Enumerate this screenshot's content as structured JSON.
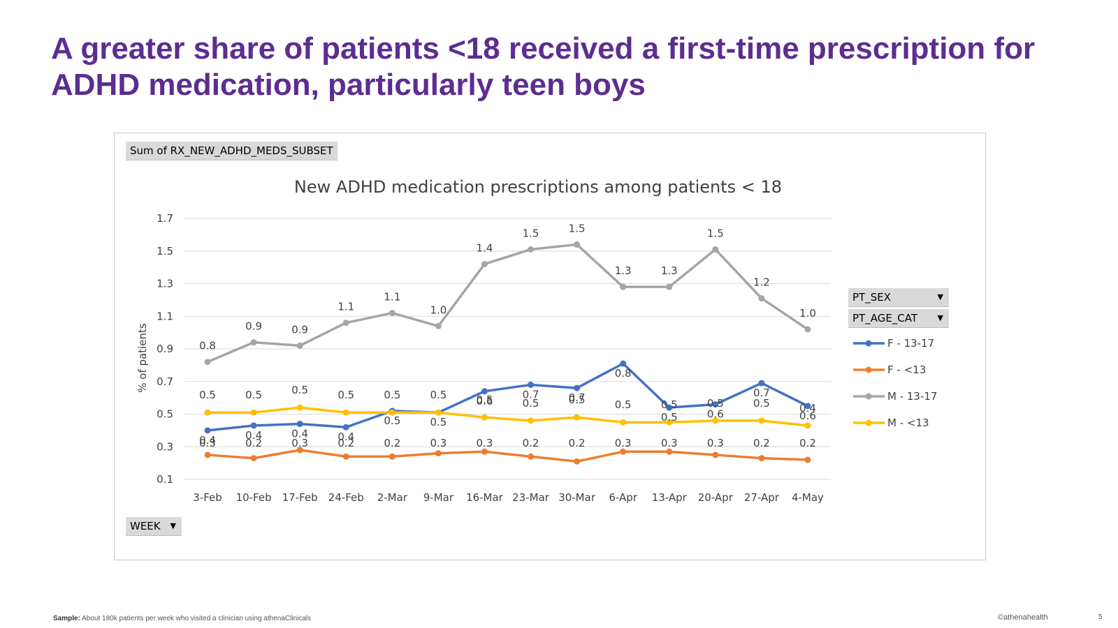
{
  "slide": {
    "title": "A greater share of patients <18 received a first-time prescription for ADHD medication, particularly teen boys",
    "footer_sample_label": "Sample:",
    "footer_sample_text": "About 180k patients per week who visited a clinician using athenaClinicals",
    "footer_brand": "©athenahealth",
    "page_number": "5"
  },
  "pivot": {
    "values_field": "Sum of RX_NEW_ADHD_MEDS_SUBSET",
    "axis_field": "WEEK",
    "legend_field_1": "PT_SEX",
    "legend_field_2": "PT_AGE_CAT",
    "dropdown_icon": "triangle-down-icon"
  },
  "chart_data": {
    "type": "line",
    "title": "New ADHD medication prescriptions among patients < 18",
    "ylabel": "% of patients",
    "xlabel": "",
    "ylim": [
      0.1,
      1.7
    ],
    "yticks": [
      "0.1",
      "0.3",
      "0.5",
      "0.7",
      "0.9",
      "1.1",
      "1.3",
      "1.5",
      "1.7"
    ],
    "grid": true,
    "legend_position": "right",
    "categories": [
      "3-Feb",
      "10-Feb",
      "17-Feb",
      "24-Feb",
      "2-Mar",
      "9-Mar",
      "16-Mar",
      "23-Mar",
      "30-Mar",
      "6-Apr",
      "13-Apr",
      "20-Apr",
      "27-Apr",
      "4-May"
    ],
    "series": [
      {
        "name": "F - 13-17",
        "color": "#4472c4",
        "values": [
          0.4,
          0.43,
          0.44,
          0.42,
          0.52,
          0.51,
          0.64,
          0.68,
          0.66,
          0.81,
          0.54,
          0.56,
          0.69,
          0.55
        ],
        "labels": [
          "0.4",
          "0.4",
          "0.4",
          "0.4",
          "0.5",
          "0.5",
          "0.6",
          "0.7",
          "0.7",
          "0.8",
          "0.5",
          "0.6",
          "0.7",
          "0.6"
        ]
      },
      {
        "name": "F - <13",
        "color": "#ed7d31",
        "values": [
          0.25,
          0.23,
          0.28,
          0.24,
          0.24,
          0.26,
          0.27,
          0.24,
          0.21,
          0.27,
          0.27,
          0.25,
          0.23,
          0.22
        ],
        "labels": [
          "0.3",
          "0.2",
          "0.3",
          "0.2",
          "0.2",
          "0.3",
          "0.3",
          "0.2",
          "0.2",
          "0.3",
          "0.3",
          "0.3",
          "0.2",
          "0.2"
        ]
      },
      {
        "name": "M - 13-17",
        "color": "#a5a5a5",
        "values": [
          0.82,
          0.94,
          0.92,
          1.06,
          1.12,
          1.04,
          1.42,
          1.51,
          1.54,
          1.28,
          1.28,
          1.51,
          1.21,
          1.02
        ],
        "labels": [
          "0.8",
          "0.9",
          "0.9",
          "1.1",
          "1.1",
          "1.0",
          "1.4",
          "1.5",
          "1.5",
          "1.3",
          "1.3",
          "1.5",
          "1.2",
          "1.0"
        ]
      },
      {
        "name": "M - <13",
        "color": "#ffc000",
        "values": [
          0.51,
          0.51,
          0.54,
          0.51,
          0.51,
          0.51,
          0.48,
          0.46,
          0.48,
          0.45,
          0.45,
          0.46,
          0.46,
          0.43
        ],
        "labels": [
          "0.5",
          "0.5",
          "0.5",
          "0.5",
          "0.5",
          "0.5",
          "0.5",
          "0.5",
          "0.5",
          "0.5",
          "0.5",
          "0.5",
          "0.5",
          "0.4"
        ]
      }
    ]
  }
}
